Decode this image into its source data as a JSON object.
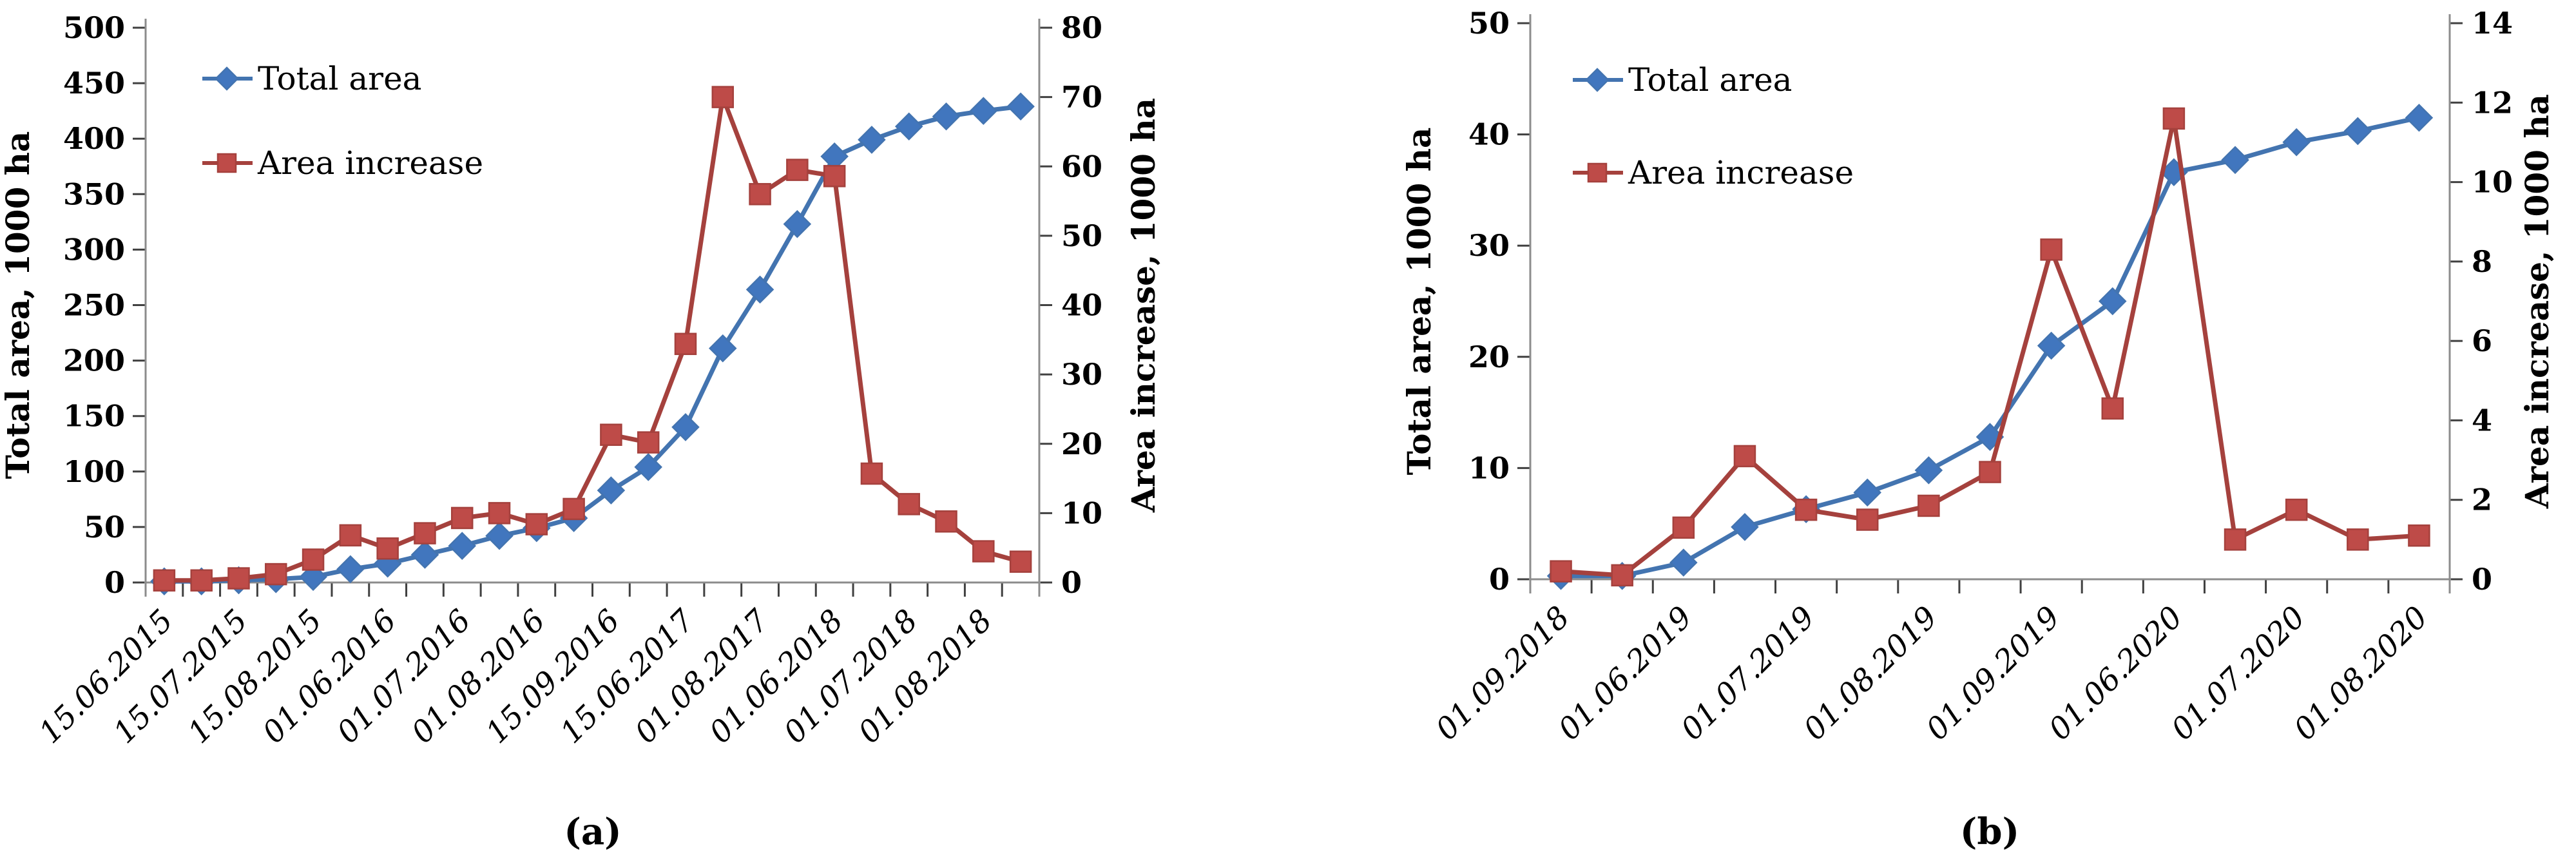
{
  "figure": {
    "description": "Two dual-axis line charts showing total burned/affected area and area increase over time",
    "background_color": "#ffffff",
    "axis_line_color": "#8C8C8C",
    "tick_mark_color": "#404040"
  },
  "chart_data": [
    {
      "id": "a",
      "type": "line",
      "caption": "(a)",
      "grid": false,
      "x_axis": {
        "tick_labels": [
          "15.06.2015",
          "15.07.2015",
          "15.08.2015",
          "01.06.2016",
          "01.07.2016",
          "01.08.2016",
          "15.09.2016",
          "15.06.2017",
          "01.08.2017",
          "01.06.2018",
          "01.07.2018",
          "01.08.2018"
        ],
        "points_per_label": 2,
        "n_points": 24,
        "label_rotation_deg": -45
      },
      "left_axis": {
        "title": "Total area, 1000 ha",
        "min": 0,
        "max": 500,
        "step": 50
      },
      "right_axis": {
        "title": "Area increase, 1000 ha",
        "min": 0,
        "max": 80,
        "step": 10
      },
      "legend": {
        "position": "upper-left",
        "entries": [
          "Total area",
          "Area increase"
        ]
      },
      "series": [
        {
          "name": "Total area",
          "axis": "left",
          "marker": "diamond",
          "color": "#4176BE",
          "line_color": "#4374B0",
          "values": [
            1,
            1,
            2,
            3,
            5,
            12,
            17,
            25,
            33,
            42,
            49,
            58,
            83,
            104,
            140,
            211,
            264,
            323,
            384,
            399,
            411,
            420,
            425,
            429
          ]
        },
        {
          "name": "Area increase",
          "axis": "right",
          "marker": "square",
          "color": "#BE4B48",
          "line_color": "#A5413D",
          "values": [
            0.3,
            0.3,
            0.6,
            1.2,
            3.3,
            6.8,
            4.9,
            7.1,
            9.3,
            10,
            8.4,
            10.6,
            21.3,
            20.2,
            34.4,
            70,
            56,
            59.5,
            58.6,
            15.7,
            11.3,
            8.8,
            4.5,
            3
          ]
        }
      ]
    },
    {
      "id": "b",
      "type": "line",
      "caption": "(b)",
      "grid": false,
      "x_axis": {
        "tick_labels": [
          "01.09.2018",
          "01.06.2019",
          "01.07.2019",
          "01.08.2019",
          "01.09.2019",
          "01.06.2020",
          "01.07.2020",
          "01.08.2020"
        ],
        "points_per_label": 2,
        "n_points": 15,
        "label_rotation_deg": -45
      },
      "left_axis": {
        "title": "Total area, 1000 ha",
        "min": 0,
        "max": 50,
        "step": 10
      },
      "right_axis": {
        "title": "Area increase, 1000 ha",
        "min": 0,
        "max": 14,
        "step": 2
      },
      "legend": {
        "position": "upper-left",
        "entries": [
          "Total area",
          "Area increase"
        ]
      },
      "series": [
        {
          "name": "Total area",
          "axis": "left",
          "marker": "diamond",
          "color": "#4176BE",
          "line_color": "#4374B0",
          "values": [
            0.3,
            0.3,
            1.5,
            4.7,
            6.3,
            7.8,
            9.8,
            12.8,
            21,
            25,
            36.6,
            37.7,
            39.3,
            40.3,
            41.5
          ]
        },
        {
          "name": "Area increase",
          "axis": "right",
          "marker": "square",
          "color": "#BE4B48",
          "line_color": "#A5413D",
          "values": [
            0.2,
            0.1,
            1.3,
            3.1,
            1.75,
            1.5,
            1.85,
            2.7,
            8.3,
            4.3,
            11.6,
            1,
            1.75,
            1,
            1.1
          ]
        }
      ]
    }
  ]
}
